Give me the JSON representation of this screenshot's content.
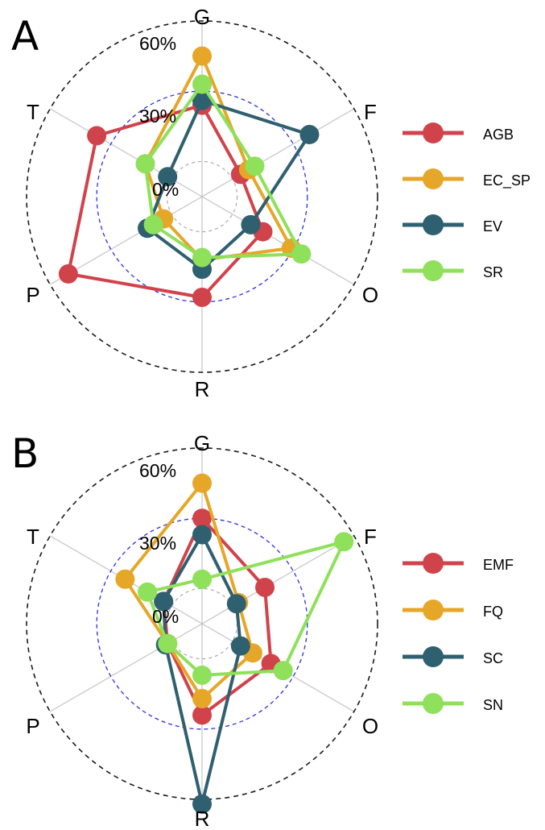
{
  "chart_data": [
    {
      "type": "radar",
      "panel_label": "A",
      "axes": [
        "G",
        "F",
        "O",
        "R",
        "P",
        "T"
      ],
      "radial_labels": [
        "60%",
        "30%",
        "0%"
      ],
      "rmin": -15,
      "rmax": 60,
      "ring_values": [
        0,
        30,
        60
      ],
      "grid": true,
      "legend_position": "right",
      "series": [
        {
          "name": "AGB",
          "color": "#d1434b",
          "values": [
            24,
            4,
            15,
            28,
            51,
            37
          ]
        },
        {
          "name": "EC_SP",
          "color": "#e6a628",
          "values": [
            45,
            8,
            29,
            12,
            4,
            13
          ]
        },
        {
          "name": "EV",
          "color": "#2f6070",
          "values": [
            26,
            38,
            9,
            16,
            12,
            2
          ]
        },
        {
          "name": "SR",
          "color": "#8fe05a",
          "values": [
            33,
            11,
            34,
            11,
            9,
            13
          ]
        }
      ]
    },
    {
      "type": "radar",
      "panel_label": "B",
      "axes": [
        "G",
        "F",
        "O",
        "R",
        "P",
        "T"
      ],
      "radial_labels": [
        "60%",
        "30%",
        "0%"
      ],
      "rmin": -15,
      "rmax": 60,
      "ring_values": [
        0,
        30,
        60
      ],
      "grid": true,
      "legend_position": "right",
      "series": [
        {
          "name": "EMF",
          "color": "#d1434b",
          "values": [
            30,
            16,
            19,
            24,
            2,
            4
          ]
        },
        {
          "name": "FQ",
          "color": "#e6a628",
          "values": [
            45,
            3,
            10,
            17,
            2,
            23
          ]
        },
        {
          "name": "SC",
          "color": "#2f6070",
          "values": [
            23,
            2,
            4,
            62,
            3,
            4
          ]
        },
        {
          "name": "SN",
          "color": "#8fe05a",
          "values": [
            4,
            55,
            25,
            7,
            2,
            12
          ]
        }
      ]
    }
  ]
}
